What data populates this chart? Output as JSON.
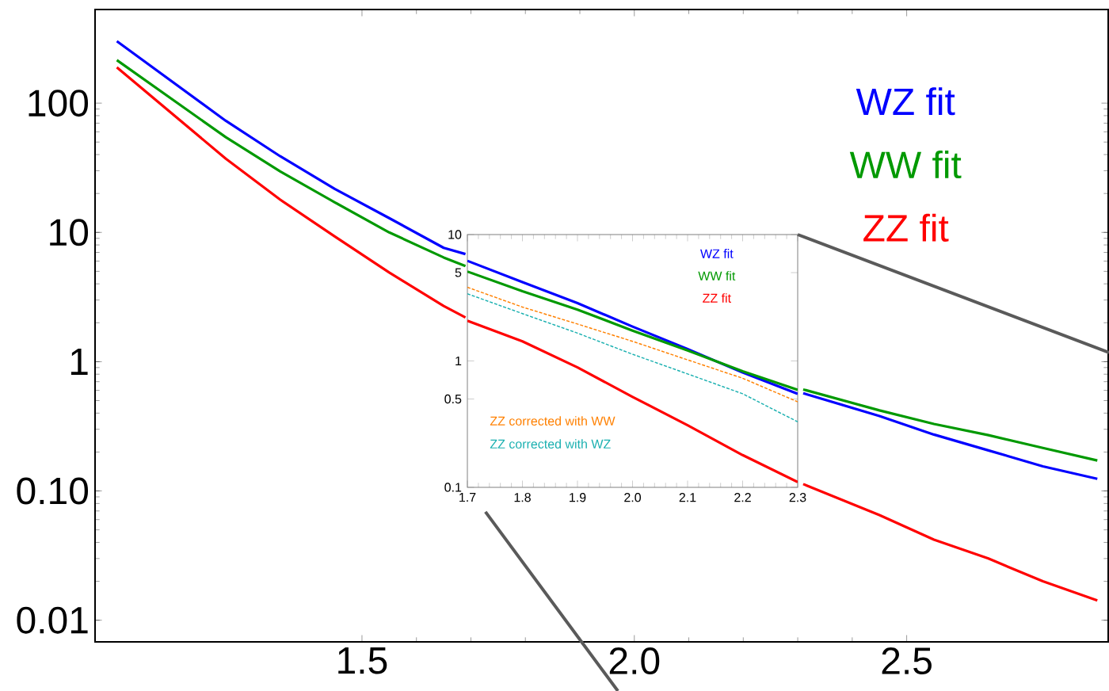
{
  "chart_data": [
    {
      "type": "line",
      "log": true,
      "legend": "top right",
      "x": [
        1.05,
        1.25,
        1.35,
        1.45,
        1.55,
        1.65,
        1.69,
        2.0,
        2.31,
        2.45,
        2.55,
        2.65,
        2.75,
        2.85
      ],
      "xlim": [
        1.01,
        2.87
      ],
      "ylim": [
        0.0068,
        530
      ],
      "xticks": [
        1.5,
        {
          "value": 2.0,
          "label": "2.0"
        },
        2.5
      ],
      "yticks": [
        0.01,
        {
          "value": 0.1,
          "label": "0.10"
        },
        1,
        10,
        100
      ],
      "series": [
        {
          "name": "WZ fit",
          "color": "#0000ff",
          "line_style": "solid",
          "values": [
            301,
            73,
            38.8,
            21.7,
            12.9,
            7.6,
            6.8,
            null,
            0.57,
            0.38,
            0.273,
            0.206,
            0.155,
            0.124
          ]
        },
        {
          "name": "WW fit",
          "color": "#009900",
          "line_style": "solid",
          "values": [
            215,
            54.5,
            29.6,
            17.1,
            10,
            6.4,
            5.5,
            null,
            0.61,
            0.42,
            0.33,
            0.27,
            0.215,
            0.172
          ]
        },
        {
          "name": "ZZ fit",
          "color": "#ff0000",
          "line_style": "solid",
          "values": [
            189,
            37.2,
            17.9,
            9.3,
            4.9,
            2.7,
            2.2,
            null,
            0.113,
            0.065,
            0.042,
            0.03,
            0.02,
            0.0142
          ]
        }
      ]
    },
    {
      "type": "line",
      "log": true,
      "legend": "center",
      "x": [
        1.7,
        1.8,
        1.9,
        2.0,
        2.1,
        2.2,
        2.3
      ],
      "xlim": [
        1.7,
        2.3
      ],
      "ylim": [
        0.1,
        10
      ],
      "xticks": [
        1.7,
        1.8,
        1.9,
        {
          "value": 2.0,
          "label": "2.0"
        },
        2.1,
        2.2,
        2.3
      ],
      "yticks": [
        0.1,
        0.5,
        1,
        5,
        10
      ],
      "series": [
        {
          "name": "WZ fit",
          "color": "#0000ff",
          "line_style": "solid",
          "values": [
            6.2,
            4.2,
            2.87,
            1.87,
            1.24,
            0.81,
            0.55
          ]
        },
        {
          "name": "WW fit",
          "color": "#009900",
          "line_style": "solid",
          "values": [
            5.1,
            3.56,
            2.55,
            1.74,
            1.21,
            0.83,
            0.59
          ]
        },
        {
          "name": "ZZ fit",
          "color": "#ff0000",
          "line_style": "solid",
          "values": [
            2.08,
            1.43,
            0.89,
            0.52,
            0.31,
            0.18,
            0.11
          ]
        },
        {
          "name": "ZZ corrected with WW",
          "color": "#ff8000",
          "line_style": "dashed",
          "values": [
            3.83,
            2.67,
            1.96,
            1.43,
            1.02,
            0.73,
            0.475
          ]
        },
        {
          "name": "ZZ corrected with WZ",
          "color": "#1ab0b0",
          "line_style": "dashed",
          "values": [
            3.4,
            2.37,
            1.66,
            1.13,
            0.79,
            0.55,
            0.33
          ]
        }
      ]
    }
  ]
}
